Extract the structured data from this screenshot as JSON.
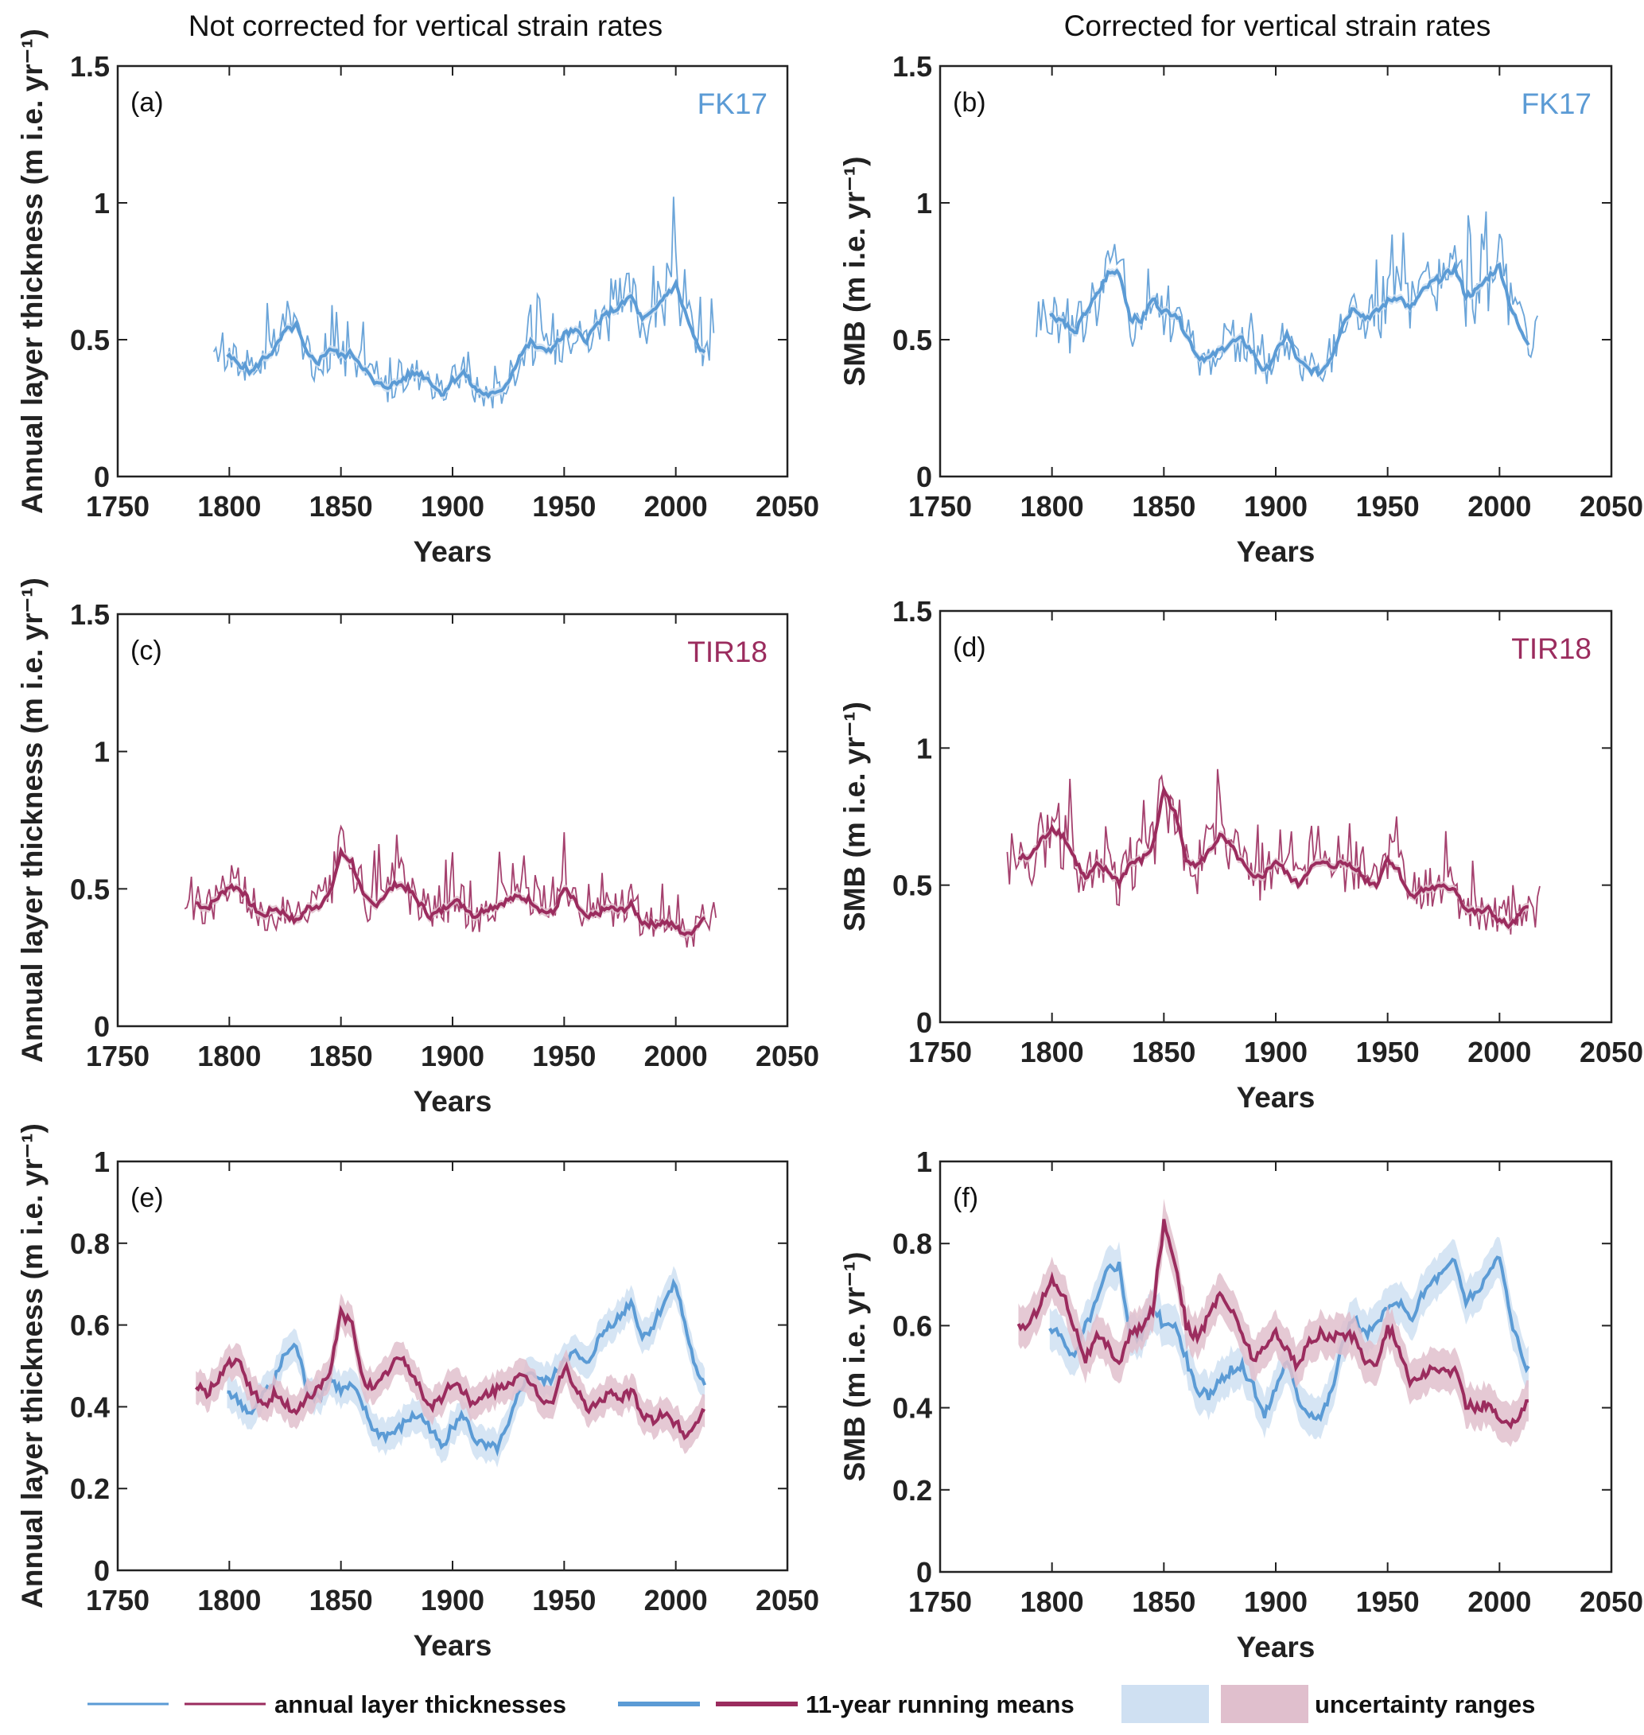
{
  "colors": {
    "fk17": "#5b9bd5",
    "tir18": "#9b2c5e",
    "fk17_band": "#cfe0f2",
    "tir18_band": "#e0bfcd",
    "axis": "#222222"
  },
  "column_titles": [
    "Not corrected for vertical strain rates",
    "Corrected for vertical strain rates"
  ],
  "legend": {
    "items": [
      {
        "label": "annual layer thicknesses",
        "type": "thin-lines"
      },
      {
        "label": "11-year running means",
        "type": "thick-lines"
      },
      {
        "label": "uncertainty ranges",
        "type": "bands"
      }
    ]
  },
  "chart_data": [
    {
      "id": "a",
      "panel_label": "(a)",
      "dataset_label": "FK17",
      "dataset": "fk17",
      "type": "line",
      "xlabel": "Years",
      "ylabel": "Annual layer thickness (m i.e. yr⁻¹)",
      "xlim": [
        1750,
        2050
      ],
      "ylim": [
        0,
        1.5
      ],
      "xticks": [
        "1750",
        "1800",
        "1850",
        "1900",
        "1950",
        "2000",
        "2050"
      ],
      "yticks": [
        "0",
        "0.5",
        "1",
        "1.5"
      ],
      "annual": {
        "start": 1793,
        "end": 2017,
        "mean_key": "fk17_raw"
      },
      "running_mean": {
        "x": [
          1799,
          1805,
          1810,
          1815,
          1820,
          1825,
          1830,
          1835,
          1840,
          1845,
          1850,
          1855,
          1860,
          1865,
          1870,
          1875,
          1880,
          1885,
          1890,
          1895,
          1900,
          1905,
          1910,
          1915,
          1920,
          1925,
          1930,
          1935,
          1940,
          1945,
          1950,
          1955,
          1960,
          1965,
          1970,
          1975,
          1980,
          1985,
          1990,
          1995,
          2000,
          2005,
          2010,
          2013
        ],
        "y": [
          0.44,
          0.41,
          0.38,
          0.43,
          0.46,
          0.53,
          0.55,
          0.44,
          0.42,
          0.47,
          0.44,
          0.45,
          0.4,
          0.34,
          0.33,
          0.34,
          0.37,
          0.38,
          0.35,
          0.3,
          0.35,
          0.38,
          0.32,
          0.3,
          0.3,
          0.35,
          0.44,
          0.49,
          0.46,
          0.47,
          0.52,
          0.53,
          0.5,
          0.56,
          0.6,
          0.62,
          0.66,
          0.57,
          0.6,
          0.66,
          0.7,
          0.58,
          0.47,
          0.45
        ]
      }
    },
    {
      "id": "b",
      "panel_label": "(b)",
      "dataset_label": "FK17",
      "dataset": "fk17",
      "type": "line",
      "xlabel": "Years",
      "ylabel": "SMB (m i.e. yr⁻¹)",
      "xlim": [
        1750,
        2050
      ],
      "ylim": [
        0,
        1.5
      ],
      "xticks": [
        "1750",
        "1800",
        "1850",
        "1900",
        "1950",
        "2000",
        "2050"
      ],
      "yticks": [
        "0",
        "0.5",
        "1",
        "1.5"
      ],
      "annual": {
        "start": 1793,
        "end": 2017,
        "mean_key": "fk17_raw"
      },
      "running_mean": {
        "x": [
          1799,
          1805,
          1810,
          1815,
          1820,
          1825,
          1830,
          1835,
          1840,
          1845,
          1850,
          1855,
          1860,
          1865,
          1870,
          1875,
          1880,
          1885,
          1890,
          1895,
          1900,
          1905,
          1910,
          1915,
          1920,
          1925,
          1930,
          1935,
          1940,
          1945,
          1950,
          1955,
          1960,
          1965,
          1970,
          1975,
          1980,
          1985,
          1990,
          1995,
          2000,
          2005,
          2010,
          2013
        ],
        "y": [
          0.59,
          0.57,
          0.52,
          0.6,
          0.66,
          0.74,
          0.75,
          0.58,
          0.57,
          0.65,
          0.6,
          0.6,
          0.52,
          0.44,
          0.43,
          0.46,
          0.49,
          0.5,
          0.45,
          0.38,
          0.45,
          0.52,
          0.42,
          0.39,
          0.38,
          0.44,
          0.56,
          0.62,
          0.58,
          0.6,
          0.64,
          0.66,
          0.61,
          0.67,
          0.71,
          0.73,
          0.76,
          0.66,
          0.68,
          0.73,
          0.77,
          0.62,
          0.52,
          0.49
        ]
      }
    },
    {
      "id": "c",
      "panel_label": "(c)",
      "dataset_label": "TIR18",
      "dataset": "tir18",
      "type": "line",
      "xlabel": "Years",
      "ylabel": "Annual layer thickness (m i.e. yr⁻¹)",
      "xlim": [
        1750,
        2050
      ],
      "ylim": [
        0,
        1.5
      ],
      "xticks": [
        "1750",
        "1800",
        "1850",
        "1900",
        "1950",
        "2000",
        "2050"
      ],
      "yticks": [
        "0",
        "0.5",
        "1",
        "1.5"
      ],
      "annual": {
        "start": 1780,
        "end": 2018,
        "mean_key": "tir18_raw"
      },
      "running_mean": {
        "x": [
          1785,
          1790,
          1795,
          1800,
          1805,
          1810,
          1815,
          1820,
          1825,
          1830,
          1835,
          1840,
          1845,
          1850,
          1855,
          1860,
          1865,
          1870,
          1875,
          1880,
          1885,
          1890,
          1895,
          1900,
          1905,
          1910,
          1915,
          1920,
          1925,
          1930,
          1935,
          1940,
          1945,
          1950,
          1955,
          1960,
          1965,
          1970,
          1975,
          1980,
          1985,
          1990,
          1995,
          2000,
          2005,
          2010,
          2013
        ],
        "y": [
          0.45,
          0.43,
          0.47,
          0.51,
          0.5,
          0.44,
          0.4,
          0.43,
          0.41,
          0.38,
          0.43,
          0.44,
          0.48,
          0.63,
          0.6,
          0.47,
          0.44,
          0.48,
          0.52,
          0.5,
          0.45,
          0.4,
          0.42,
          0.46,
          0.44,
          0.4,
          0.43,
          0.44,
          0.46,
          0.47,
          0.46,
          0.42,
          0.41,
          0.5,
          0.45,
          0.39,
          0.41,
          0.43,
          0.42,
          0.44,
          0.38,
          0.37,
          0.38,
          0.36,
          0.33,
          0.37,
          0.4
        ]
      }
    },
    {
      "id": "d",
      "panel_label": "(d)",
      "dataset_label": "TIR18",
      "dataset": "tir18",
      "type": "line",
      "xlabel": "Years",
      "ylabel": "SMB (m i.e. yr⁻¹)",
      "xlim": [
        1750,
        2050
      ],
      "ylim": [
        0,
        1.5
      ],
      "xticks": [
        "1750",
        "1800",
        "1850",
        "1900",
        "1950",
        "2000",
        "2050"
      ],
      "yticks": [
        "0",
        "0.5",
        "1",
        "1.5"
      ],
      "annual": {
        "start": 1780,
        "end": 2018,
        "mean_key": "tir18_raw"
      },
      "running_mean": {
        "x": [
          1785,
          1790,
          1795,
          1800,
          1805,
          1810,
          1815,
          1820,
          1825,
          1830,
          1835,
          1840,
          1845,
          1850,
          1855,
          1860,
          1865,
          1870,
          1875,
          1880,
          1885,
          1890,
          1895,
          1900,
          1905,
          1910,
          1915,
          1920,
          1925,
          1930,
          1935,
          1940,
          1945,
          1950,
          1955,
          1960,
          1965,
          1970,
          1975,
          1980,
          1985,
          1990,
          1995,
          2000,
          2005,
          2010,
          2013
        ],
        "y": [
          0.6,
          0.6,
          0.66,
          0.71,
          0.68,
          0.6,
          0.52,
          0.57,
          0.55,
          0.51,
          0.58,
          0.59,
          0.64,
          0.85,
          0.76,
          0.6,
          0.57,
          0.62,
          0.68,
          0.64,
          0.58,
          0.52,
          0.54,
          0.59,
          0.54,
          0.5,
          0.56,
          0.58,
          0.57,
          0.58,
          0.57,
          0.52,
          0.5,
          0.6,
          0.55,
          0.46,
          0.48,
          0.49,
          0.49,
          0.49,
          0.41,
          0.4,
          0.41,
          0.37,
          0.35,
          0.4,
          0.42
        ]
      }
    },
    {
      "id": "e",
      "panel_label": "(e)",
      "type": "line",
      "xlabel": "Years",
      "ylabel": "Annual layer thickness (m i.e. yr⁻¹)",
      "xlim": [
        1750,
        2050
      ],
      "ylim": [
        0,
        1
      ],
      "xticks": [
        "1750",
        "1800",
        "1850",
        "1900",
        "1950",
        "2000",
        "2050"
      ],
      "yticks": [
        "0",
        "0.2",
        "0.4",
        "0.6",
        "0.8",
        "1"
      ],
      "series": [
        {
          "name": "FK17 11-year running mean",
          "dataset": "fk17",
          "ref": "a",
          "band": 0.04
        },
        {
          "name": "TIR18 11-year running mean",
          "dataset": "tir18",
          "ref": "c",
          "band": 0.04
        }
      ]
    },
    {
      "id": "f",
      "panel_label": "(f)",
      "type": "line",
      "xlabel": "Years",
      "ylabel": "SMB (m i.e. yr⁻¹)",
      "xlim": [
        1750,
        2050
      ],
      "ylim": [
        0,
        1
      ],
      "xticks": [
        "1750",
        "1800",
        "1850",
        "1900",
        "1950",
        "2000",
        "2050"
      ],
      "yticks": [
        "0",
        "0.2",
        "0.4",
        "0.6",
        "0.8",
        "1"
      ],
      "series": [
        {
          "name": "FK17 11-year running mean",
          "dataset": "fk17",
          "ref": "b",
          "band": 0.05
        },
        {
          "name": "TIR18 11-year running mean",
          "dataset": "tir18",
          "ref": "d",
          "band": 0.05
        }
      ]
    }
  ]
}
